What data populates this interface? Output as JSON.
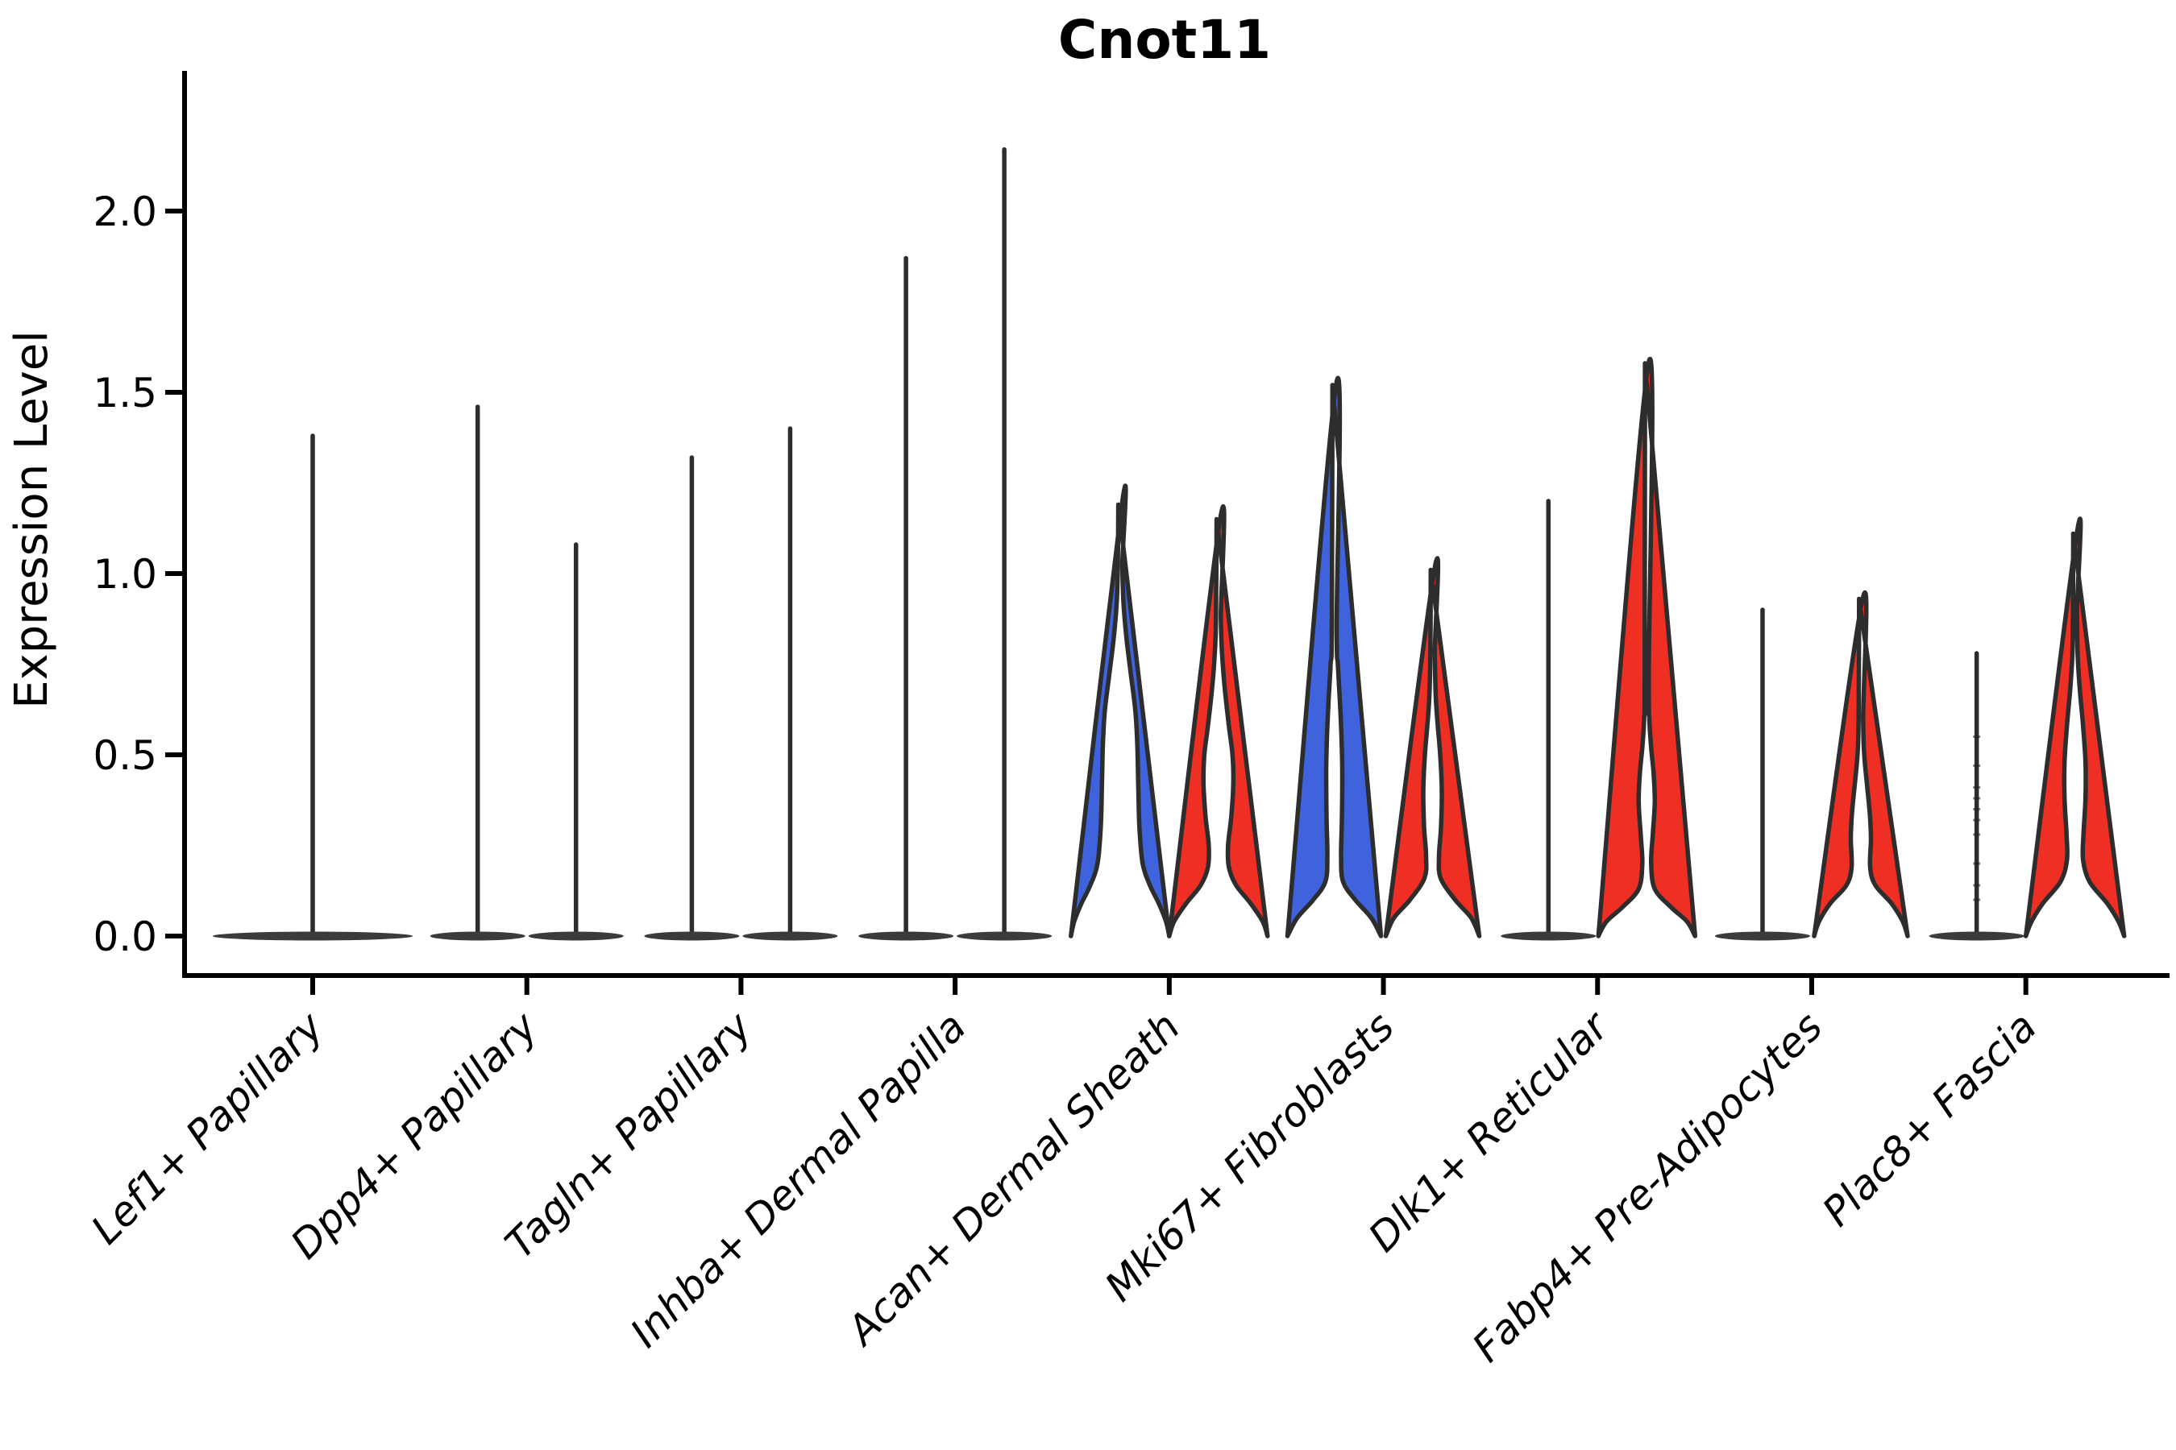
{
  "figure": {
    "background": "#ffffff",
    "axis_color": "#000000",
    "violin_outline_color": "#2d2d2d",
    "flat_violin_fill": "#3b3b3b"
  },
  "chart_data": {
    "type": "violin",
    "title": "Cnot11",
    "ylabel": "Expression Level",
    "xlabel": "",
    "ylim": [
      0,
      2.3
    ],
    "yticks": [
      0,
      0.5,
      1.0,
      1.5,
      2.0
    ],
    "ytick_labels": [
      "0.0",
      "0.5",
      "1.0",
      "1.5",
      "2.0"
    ],
    "grid": false,
    "legend": "none",
    "categories": [
      "Lef1+ Papillary",
      "Dpp4+ Papillary",
      "Tagln+ Papillary",
      "Inhba+ Dermal Papilla",
      "Acan+ Dermal Sheath",
      "Mki67+ Fibroblasts",
      "Dlk1+ Reticular",
      "Fabp4+ Pre-Adipocytes",
      "Plac8+ Fascia"
    ],
    "split_colors": {
      "blue": "#3E63DC",
      "red": "#EF2F24",
      "dark": "#3b3b3b"
    },
    "violins": [
      {
        "category": 0,
        "side": "center",
        "style": "flat",
        "color": "dark",
        "max_expression": 1.38,
        "base_halfwidth": 124
      },
      {
        "category": 1,
        "side": "left",
        "style": "flat",
        "color": "dark",
        "max_expression": 1.46,
        "base_halfwidth": 59
      },
      {
        "category": 1,
        "side": "right",
        "style": "flat",
        "color": "dark",
        "max_expression": 1.08,
        "base_halfwidth": 59
      },
      {
        "category": 2,
        "side": "left",
        "style": "flat",
        "color": "dark",
        "max_expression": 1.32,
        "base_halfwidth": 59
      },
      {
        "category": 2,
        "side": "right",
        "style": "flat",
        "color": "dark",
        "max_expression": 1.4,
        "base_halfwidth": 59
      },
      {
        "category": 3,
        "side": "left",
        "style": "flat",
        "color": "dark",
        "max_expression": 1.87,
        "base_halfwidth": 59
      },
      {
        "category": 3,
        "side": "right",
        "style": "flat",
        "color": "dark",
        "max_expression": 2.17,
        "base_halfwidth": 59
      },
      {
        "category": 4,
        "side": "left",
        "style": "body",
        "color": "blue",
        "max_expression": 1.19,
        "profile": [
          [
            0,
            61
          ],
          [
            0.04,
            57
          ],
          [
            0.09,
            48
          ],
          [
            0.14,
            37
          ],
          [
            0.2,
            28
          ],
          [
            0.3,
            24
          ],
          [
            0.42,
            22.5
          ],
          [
            0.52,
            21.5
          ],
          [
            0.62,
            19
          ],
          [
            0.72,
            13.5
          ],
          [
            0.82,
            8
          ],
          [
            0.92,
            4.2
          ],
          [
            1.02,
            2.8
          ],
          [
            1.19,
            2.2
          ]
        ]
      },
      {
        "category": 4,
        "side": "right",
        "style": "body",
        "color": "red",
        "max_expression": 1.15,
        "profile": [
          [
            0,
            61
          ],
          [
            0.04,
            55
          ],
          [
            0.09,
            40
          ],
          [
            0.14,
            22
          ],
          [
            0.19,
            13
          ],
          [
            0.25,
            12
          ],
          [
            0.33,
            16
          ],
          [
            0.42,
            18.5
          ],
          [
            0.5,
            17.5
          ],
          [
            0.58,
            13
          ],
          [
            0.68,
            8
          ],
          [
            0.78,
            4.5
          ],
          [
            0.88,
            3
          ],
          [
            1.15,
            2.2
          ]
        ]
      },
      {
        "category": 5,
        "side": "left",
        "style": "body",
        "color": "blue",
        "max_expression": 1.52,
        "profile": [
          [
            0,
            58
          ],
          [
            0.05,
            46
          ],
          [
            0.1,
            26
          ],
          [
            0.15,
            11
          ],
          [
            0.22,
            8.5
          ],
          [
            0.32,
            9.5
          ],
          [
            0.45,
            10
          ],
          [
            0.55,
            9
          ],
          [
            0.65,
            7
          ],
          [
            0.75,
            4.5
          ],
          [
            0.85,
            3
          ],
          [
            1.52,
            2.2
          ]
        ]
      },
      {
        "category": 5,
        "side": "right",
        "style": "body",
        "color": "red",
        "max_expression": 1.01,
        "profile": [
          [
            0,
            58
          ],
          [
            0.05,
            48
          ],
          [
            0.1,
            28
          ],
          [
            0.16,
            10
          ],
          [
            0.22,
            8
          ],
          [
            0.3,
            10.5
          ],
          [
            0.4,
            11.5
          ],
          [
            0.5,
            9.5
          ],
          [
            0.58,
            6.5
          ],
          [
            0.66,
            4
          ],
          [
            0.78,
            2.8
          ],
          [
            1.01,
            2.2
          ]
        ]
      },
      {
        "category": 6,
        "side": "left",
        "style": "flat",
        "color": "dark",
        "max_expression": 1.2,
        "base_halfwidth": 59
      },
      {
        "category": 6,
        "side": "right",
        "style": "body",
        "color": "red",
        "max_expression": 1.58,
        "profile": [
          [
            0,
            60
          ],
          [
            0.04,
            50
          ],
          [
            0.08,
            30
          ],
          [
            0.13,
            10
          ],
          [
            0.2,
            5.5
          ],
          [
            0.28,
            7.5
          ],
          [
            0.37,
            10
          ],
          [
            0.45,
            8.5
          ],
          [
            0.52,
            5.5
          ],
          [
            0.6,
            3.2
          ],
          [
            0.72,
            2.5
          ],
          [
            1.58,
            2.2
          ]
        ]
      },
      {
        "category": 7,
        "side": "left",
        "style": "flat",
        "color": "dark",
        "max_expression": 0.9,
        "base_halfwidth": 59
      },
      {
        "category": 7,
        "side": "right",
        "style": "body",
        "color": "red",
        "max_expression": 0.93,
        "profile": [
          [
            0,
            58
          ],
          [
            0.04,
            52
          ],
          [
            0.09,
            38
          ],
          [
            0.14,
            18
          ],
          [
            0.19,
            11.5
          ],
          [
            0.27,
            12.5
          ],
          [
            0.34,
            11
          ],
          [
            0.42,
            7.5
          ],
          [
            0.5,
            4.2
          ],
          [
            0.6,
            2.8
          ],
          [
            0.93,
            2.2
          ]
        ]
      },
      {
        "category": 8,
        "side": "left",
        "style": "flat",
        "color": "dark",
        "max_expression": 0.78,
        "base_halfwidth": 59,
        "dots": [
          0.1,
          0.14,
          0.2,
          0.28,
          0.32,
          0.35,
          0.38,
          0.41,
          0.47,
          0.55
        ]
      },
      {
        "category": 8,
        "side": "right",
        "style": "body",
        "color": "red",
        "max_expression": 1.11,
        "profile": [
          [
            0,
            61
          ],
          [
            0.04,
            54
          ],
          [
            0.09,
            40
          ],
          [
            0.15,
            18
          ],
          [
            0.21,
            10
          ],
          [
            0.28,
            10.5
          ],
          [
            0.38,
            13
          ],
          [
            0.48,
            13
          ],
          [
            0.58,
            10
          ],
          [
            0.68,
            6
          ],
          [
            0.78,
            3.2
          ],
          [
            0.9,
            2.5
          ],
          [
            1.11,
            2.2
          ]
        ]
      }
    ]
  }
}
